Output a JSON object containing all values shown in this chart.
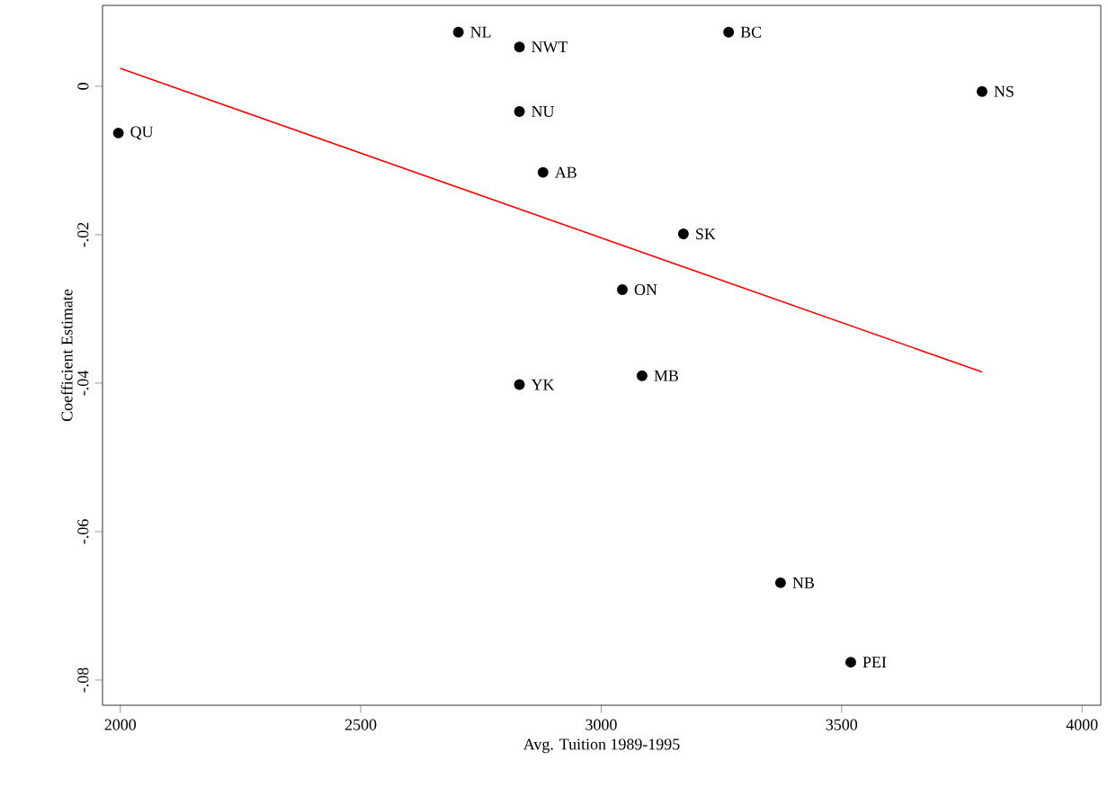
{
  "chart_data": {
    "type": "scatter",
    "xlabel": "Avg. Tuition 1989-1995",
    "ylabel": "Coefficient Estimate",
    "series": [
      {
        "marker": "circle",
        "color": "#000000",
        "x": [
          1996,
          2703,
          2830,
          3265,
          3792,
          2830,
          2879,
          3171,
          3044,
          3085,
          2830,
          3373,
          3519
        ],
        "values": [
          -0.0063,
          0.0073,
          0.0053,
          0.0073,
          -0.0007,
          -0.0034,
          -0.0116,
          -0.0199,
          -0.0274,
          -0.039,
          -0.0402,
          -0.0669,
          -0.0776
        ]
      },
      {
        "type": "line",
        "marker": "none",
        "color": "#ff0000",
        "x": [
          2000,
          3792
        ],
        "values": [
          0.0024,
          -0.0385
        ]
      }
    ],
    "annotations": [
      {
        "text": "QU",
        "x": 1996,
        "y": -0.0063
      },
      {
        "text": "NL",
        "x": 2703,
        "y": 0.0073
      },
      {
        "text": "NWT",
        "x": 2830,
        "y": 0.0053
      },
      {
        "text": "BC",
        "x": 3265,
        "y": 0.0073
      },
      {
        "text": "NS",
        "x": 3792,
        "y": -0.0007
      },
      {
        "text": "NU",
        "x": 2830,
        "y": -0.0034
      },
      {
        "text": "AB",
        "x": 2879,
        "y": -0.0116
      },
      {
        "text": "SK",
        "x": 3171,
        "y": -0.0199
      },
      {
        "text": "ON",
        "x": 3044,
        "y": -0.0274
      },
      {
        "text": "MB",
        "x": 3085,
        "y": -0.039
      },
      {
        "text": "YK",
        "x": 2830,
        "y": -0.0402
      },
      {
        "text": "NB",
        "x": 3373,
        "y": -0.0669
      },
      {
        "text": "PEI",
        "x": 3519,
        "y": -0.0776
      }
    ],
    "xlim": [
      1963,
      4039
    ],
    "ylim": [
      -0.0834,
      0.0109
    ],
    "xticks": [
      2000,
      2500,
      3000,
      3500,
      4000
    ],
    "yticks": [
      {
        "value": 0,
        "label": "0"
      },
      {
        "value": -0.02,
        "label": "-.02"
      },
      {
        "value": -0.04,
        "label": "-.04"
      },
      {
        "value": -0.06,
        "label": "-.06"
      },
      {
        "value": -0.08,
        "label": "-.08"
      }
    ],
    "grid": false
  }
}
